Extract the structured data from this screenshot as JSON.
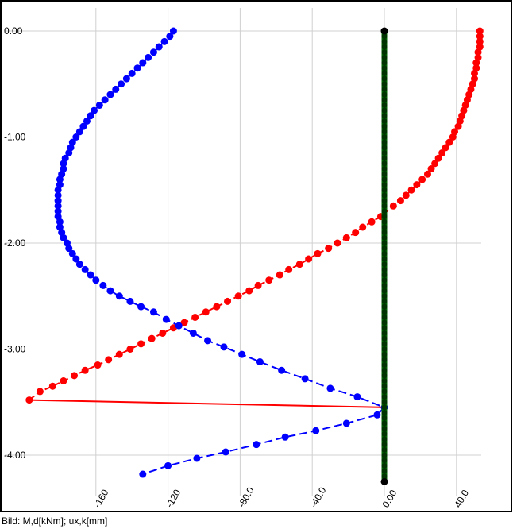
{
  "caption": "Bild: M,d[kNm]; ux,k[mm]",
  "chart_data": {
    "type": "line",
    "title": "",
    "xlabel": "",
    "ylabel": "",
    "xlim": [
      -196,
      68
    ],
    "ylim": [
      -4.5,
      0.2
    ],
    "x_ticks": [
      -160,
      -120,
      -80.0,
      -40.0,
      0.0,
      40.0
    ],
    "x_tick_labels": [
      "-160",
      "-120",
      "-80.0",
      "-40.0",
      "0.00",
      "40.0"
    ],
    "y_ticks": [
      0.0,
      -1.0,
      -2.0,
      -3.0,
      -4.0
    ],
    "y_tick_labels": [
      "0.00",
      "-1.00",
      "-2.00",
      "-3.00",
      "-4.00"
    ],
    "grid": true,
    "legend": "none",
    "colors": {
      "moment": "#ff0000",
      "displacement": "#0000ff",
      "pile": "#006400",
      "end_nodes": "#000000",
      "grid": "#d0d0d0"
    },
    "series": [
      {
        "id": "moment",
        "color": "#ff0000",
        "points": [
          [
            53,
            0.0
          ],
          [
            53,
            -0.05
          ],
          [
            53,
            -0.1
          ],
          [
            53,
            -0.15
          ],
          [
            52,
            -0.2
          ],
          [
            52,
            -0.25
          ],
          [
            51,
            -0.3
          ],
          [
            51,
            -0.35
          ],
          [
            50,
            -0.4
          ],
          [
            50,
            -0.45
          ],
          [
            49,
            -0.5
          ],
          [
            48,
            -0.55
          ],
          [
            47,
            -0.6
          ],
          [
            46,
            -0.65
          ],
          [
            45,
            -0.7
          ],
          [
            44,
            -0.75
          ],
          [
            43,
            -0.8
          ],
          [
            42,
            -0.85
          ],
          [
            41,
            -0.9
          ],
          [
            39,
            -0.95
          ],
          [
            38,
            -1.0
          ],
          [
            36,
            -1.05
          ],
          [
            34,
            -1.1
          ],
          [
            32,
            -1.15
          ],
          [
            30,
            -1.2
          ],
          [
            28,
            -1.25
          ],
          [
            26,
            -1.3
          ],
          [
            24,
            -1.35
          ],
          [
            21,
            -1.4
          ],
          [
            18,
            -1.45
          ],
          [
            15,
            -1.5
          ],
          [
            12,
            -1.55
          ],
          [
            9,
            -1.6
          ],
          [
            5,
            -1.65
          ],
          [
            -2,
            -1.75
          ],
          [
            -7,
            -1.8
          ],
          [
            -12,
            -1.85
          ],
          [
            -16,
            -1.9
          ],
          [
            -21,
            -1.95
          ],
          [
            -26,
            -2.0
          ],
          [
            -31,
            -2.05
          ],
          [
            -37,
            -2.1
          ],
          [
            -42,
            -2.15
          ],
          [
            -47,
            -2.2
          ],
          [
            -53,
            -2.25
          ],
          [
            -58,
            -2.3
          ],
          [
            -64,
            -2.35
          ],
          [
            -70,
            -2.4
          ],
          [
            -75,
            -2.45
          ],
          [
            -81,
            -2.5
          ],
          [
            -87,
            -2.55
          ],
          [
            -93,
            -2.6
          ],
          [
            -99,
            -2.65
          ],
          [
            -105,
            -2.7
          ],
          [
            -111,
            -2.75
          ],
          [
            -117,
            -2.8
          ],
          [
            -123,
            -2.85
          ],
          [
            -129,
            -2.9
          ],
          [
            -135,
            -2.95
          ],
          [
            -141,
            -3.0
          ],
          [
            -147,
            -3.05
          ],
          [
            -153,
            -3.1
          ],
          [
            -159,
            -3.15
          ],
          [
            -166,
            -3.2
          ],
          [
            -172,
            -3.25
          ],
          [
            -178,
            -3.3
          ],
          [
            -184,
            -3.35
          ],
          [
            -191,
            -3.4
          ],
          [
            -197,
            -3.48
          ]
        ],
        "closing_segment": [
          [
            -197,
            -3.48
          ],
          [
            0,
            -3.55
          ]
        ]
      },
      {
        "id": "displacement",
        "color": "#0000ff",
        "points": [
          [
            -117,
            0.0
          ],
          [
            -119,
            -0.05
          ],
          [
            -122,
            -0.1
          ],
          [
            -125,
            -0.15
          ],
          [
            -128,
            -0.2
          ],
          [
            -131,
            -0.25
          ],
          [
            -134,
            -0.3
          ],
          [
            -137,
            -0.35
          ],
          [
            -140,
            -0.4
          ],
          [
            -143,
            -0.45
          ],
          [
            -146,
            -0.5
          ],
          [
            -149,
            -0.55
          ],
          [
            -152,
            -0.6
          ],
          [
            -155,
            -0.65
          ],
          [
            -158,
            -0.7
          ],
          [
            -161,
            -0.75
          ],
          [
            -163,
            -0.8
          ],
          [
            -165,
            -0.85
          ],
          [
            -167,
            -0.9
          ],
          [
            -169,
            -0.95
          ],
          [
            -171,
            -1.0
          ],
          [
            -173,
            -1.05
          ],
          [
            -174,
            -1.1
          ],
          [
            -175,
            -1.15
          ],
          [
            -177,
            -1.2
          ],
          [
            -178,
            -1.25
          ],
          [
            -178,
            -1.3
          ],
          [
            -179,
            -1.35
          ],
          [
            -180,
            -1.4
          ],
          [
            -180,
            -1.45
          ],
          [
            -181,
            -1.5
          ],
          [
            -181,
            -1.55
          ],
          [
            -181,
            -1.6
          ],
          [
            -181,
            -1.65
          ],
          [
            -181,
            -1.7
          ],
          [
            -181,
            -1.75
          ],
          [
            -180,
            -1.8
          ],
          [
            -180,
            -1.85
          ],
          [
            -179,
            -1.9
          ],
          [
            -178,
            -1.95
          ],
          [
            -176,
            -2.0
          ],
          [
            -175,
            -2.05
          ],
          [
            -173,
            -2.1
          ],
          [
            -171,
            -2.15
          ],
          [
            -169,
            -2.2
          ],
          [
            -166,
            -2.25
          ],
          [
            -163,
            -2.3
          ],
          [
            -160,
            -2.35
          ],
          [
            -156,
            -2.4
          ],
          [
            -152,
            -2.45
          ],
          [
            -147,
            -2.5
          ],
          [
            -141,
            -2.55
          ],
          [
            -135,
            -2.6
          ],
          [
            -128,
            -2.65
          ],
          [
            -121,
            -2.72
          ],
          [
            -114,
            -2.78
          ],
          [
            -106,
            -2.85
          ],
          [
            -98,
            -2.92
          ],
          [
            -89,
            -2.98
          ],
          [
            -79,
            -3.05
          ],
          [
            -69,
            -3.12
          ],
          [
            -57,
            -3.2
          ],
          [
            -44,
            -3.28
          ],
          [
            -30,
            -3.37
          ],
          [
            -15,
            -3.45
          ],
          [
            0,
            -3.55
          ],
          [
            -4,
            -3.62
          ],
          [
            -21,
            -3.7
          ],
          [
            -38,
            -3.77
          ],
          [
            -55,
            -3.83
          ],
          [
            -71,
            -3.9
          ],
          [
            -88,
            -3.97
          ],
          [
            -104,
            -4.03
          ],
          [
            -120,
            -4.1
          ],
          [
            -134,
            -4.18
          ]
        ]
      },
      {
        "id": "pile",
        "color": "#006400",
        "x": 0,
        "y_from": 0.0,
        "y_to": -4.25,
        "node_step": 0.05
      }
    ],
    "end_nodes": [
      [
        0,
        0.0
      ],
      [
        0,
        -4.25
      ]
    ]
  }
}
